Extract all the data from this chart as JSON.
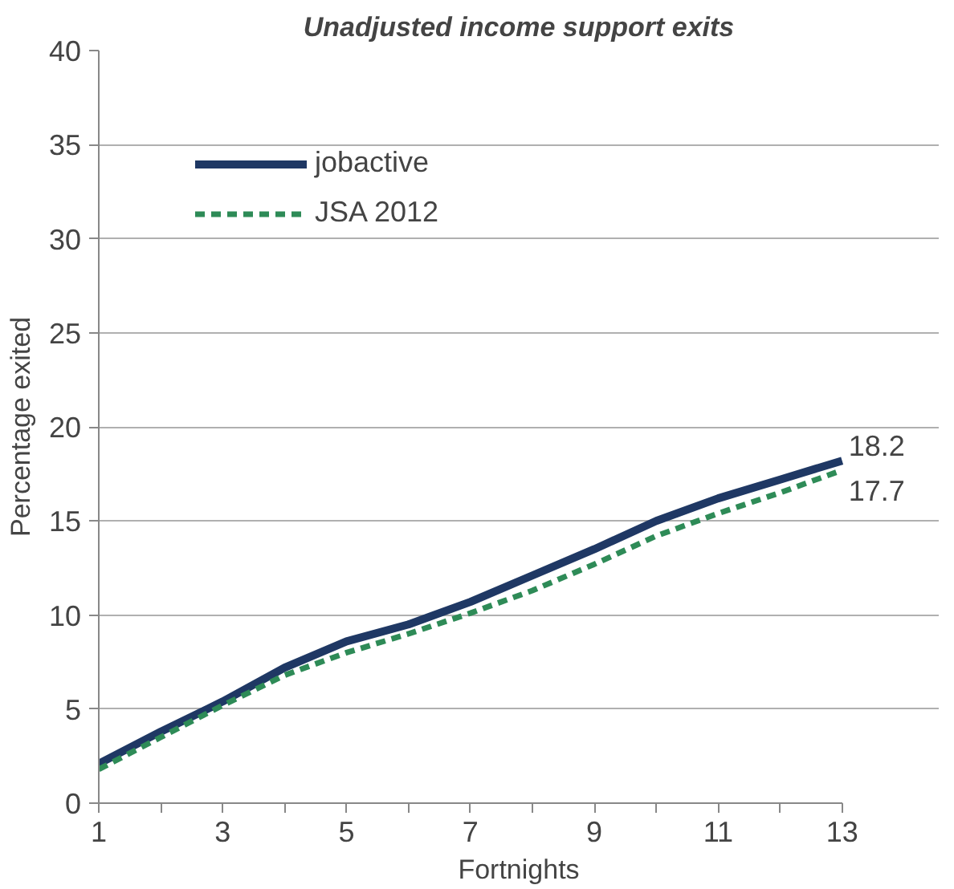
{
  "chart_data": {
    "type": "line",
    "title": "Unadjusted income support exits",
    "xlabel": "Fortnights",
    "ylabel": "Percentage exited",
    "x": [
      1,
      2,
      3,
      4,
      5,
      6,
      7,
      8,
      9,
      10,
      11,
      12,
      13
    ],
    "series": [
      {
        "name": "jobactive",
        "color": "#1f3864",
        "line_style": "solid",
        "values": [
          2.1,
          3.8,
          5.4,
          7.2,
          8.6,
          9.5,
          10.7,
          12.1,
          13.5,
          15.0,
          16.2,
          17.2,
          18.2
        ],
        "value_labels": [
          null,
          null,
          null,
          null,
          null,
          null,
          null,
          null,
          null,
          null,
          null,
          null,
          "18.2"
        ]
      },
      {
        "name": "JSA 2012",
        "color": "#2e8b57",
        "line_style": "dashed",
        "values": [
          1.8,
          3.5,
          5.2,
          6.8,
          8.0,
          9.0,
          10.1,
          11.3,
          12.7,
          14.2,
          15.4,
          16.5,
          17.7
        ],
        "value_labels": [
          null,
          null,
          null,
          null,
          null,
          null,
          null,
          null,
          null,
          null,
          null,
          null,
          "17.7"
        ]
      }
    ],
    "xlim": [
      1,
      13
    ],
    "ylim": [
      0,
      40
    ],
    "xticks": [
      1,
      {
        "value": 2,
        "label": null
      },
      3,
      {
        "value": 4,
        "label": null
      },
      5,
      {
        "value": 6,
        "label": null
      },
      7,
      {
        "value": 8,
        "label": null
      },
      9,
      {
        "value": 10,
        "label": null
      },
      11,
      {
        "value": 12,
        "label": null
      },
      13
    ],
    "yticks": [
      0,
      5,
      10,
      15,
      20,
      25,
      30,
      35,
      40
    ],
    "grid": "y",
    "legend": "top left",
    "marker": "none"
  }
}
